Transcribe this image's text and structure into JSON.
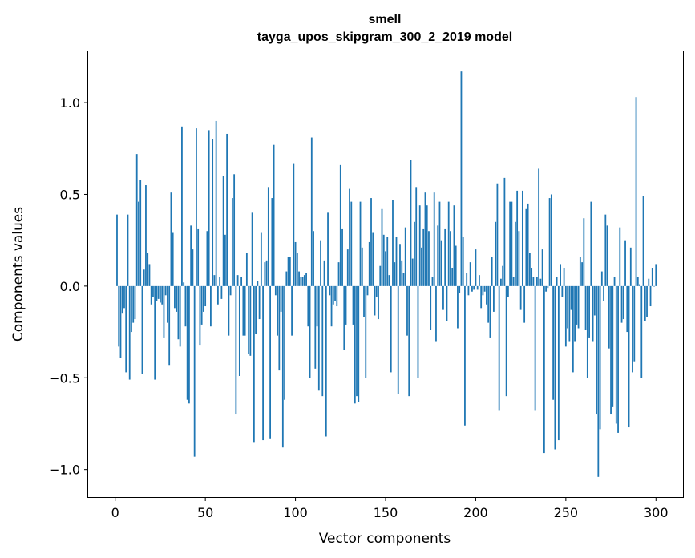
{
  "chart_data": {
    "type": "bar",
    "title_line1": "smell",
    "title_line2": "tayga_upos_skipgram_300_2_2019 model",
    "xlabel": "Vector components",
    "ylabel": "Components values",
    "xlim": [
      -15,
      315
    ],
    "ylim": [
      -1.15,
      1.28
    ],
    "xticks": [
      0,
      50,
      100,
      150,
      200,
      250,
      300
    ],
    "xtick_labels": [
      "0",
      "50",
      "100",
      "150",
      "200",
      "250",
      "300"
    ],
    "yticks": [
      -1.0,
      -0.5,
      0.0,
      0.5,
      1.0
    ],
    "ytick_labels": [
      "−1.0",
      "−0.5",
      "0.0",
      "0.5",
      "1.0"
    ],
    "bar_color": "#1f77b4",
    "x": [
      1,
      2,
      3,
      4,
      5,
      6,
      7,
      8,
      9,
      10,
      11,
      12,
      13,
      14,
      15,
      16,
      17,
      18,
      19,
      20,
      21,
      22,
      23,
      24,
      25,
      26,
      27,
      28,
      29,
      30,
      31,
      32,
      33,
      34,
      35,
      36,
      37,
      38,
      39,
      40,
      41,
      42,
      43,
      44,
      45,
      46,
      47,
      48,
      49,
      50,
      51,
      52,
      53,
      54,
      55,
      56,
      57,
      58,
      59,
      60,
      61,
      62,
      63,
      64,
      65,
      66,
      67,
      68,
      69,
      70,
      71,
      72,
      73,
      74,
      75,
      76,
      77,
      78,
      79,
      80,
      81,
      82,
      83,
      84,
      85,
      86,
      87,
      88,
      89,
      90,
      91,
      92,
      93,
      94,
      95,
      96,
      97,
      98,
      99,
      100,
      101,
      102,
      103,
      104,
      105,
      106,
      107,
      108,
      109,
      110,
      111,
      112,
      113,
      114,
      115,
      116,
      117,
      118,
      119,
      120,
      121,
      122,
      123,
      124,
      125,
      126,
      127,
      128,
      129,
      130,
      131,
      132,
      133,
      134,
      135,
      136,
      137,
      138,
      139,
      140,
      141,
      142,
      143,
      144,
      145,
      146,
      147,
      148,
      149,
      150,
      151,
      152,
      153,
      154,
      155,
      156,
      157,
      158,
      159,
      160,
      161,
      162,
      163,
      164,
      165,
      166,
      167,
      168,
      169,
      170,
      171,
      172,
      173,
      174,
      175,
      176,
      177,
      178,
      179,
      180,
      181,
      182,
      183,
      184,
      185,
      186,
      187,
      188,
      189,
      190,
      191,
      192,
      193,
      194,
      195,
      196,
      197,
      198,
      199,
      200,
      201,
      202,
      203,
      204,
      205,
      206,
      207,
      208,
      209,
      210,
      211,
      212,
      213,
      214,
      215,
      216,
      217,
      218,
      219,
      220,
      221,
      222,
      223,
      224,
      225,
      226,
      227,
      228,
      229,
      230,
      231,
      232,
      233,
      234,
      235,
      236,
      237,
      238,
      239,
      240,
      241,
      242,
      243,
      244,
      245,
      246,
      247,
      248,
      249,
      250,
      251,
      252,
      253,
      254,
      255,
      256,
      257,
      258,
      259,
      260,
      261,
      262,
      263,
      264,
      265,
      266,
      267,
      268,
      269,
      270,
      271,
      272,
      273,
      274,
      275,
      276,
      277,
      278,
      279,
      280,
      281,
      282,
      283,
      284,
      285,
      286,
      287,
      288,
      289,
      290,
      291,
      292,
      293,
      294,
      295,
      296,
      297,
      298,
      299,
      300
    ],
    "values": [
      0.39,
      -0.33,
      -0.39,
      -0.15,
      -0.12,
      -0.47,
      0.39,
      -0.51,
      -0.25,
      -0.2,
      -0.18,
      0.72,
      0.46,
      0.58,
      -0.48,
      0.09,
      0.55,
      0.18,
      0.12,
      -0.1,
      -0.06,
      -0.51,
      -0.08,
      -0.07,
      -0.09,
      -0.1,
      -0.28,
      -0.05,
      -0.2,
      -0.43,
      0.51,
      0.29,
      -0.12,
      -0.14,
      -0.29,
      -0.33,
      0.87,
      0.02,
      -0.22,
      -0.62,
      -0.64,
      0.33,
      0.2,
      -0.93,
      0.86,
      0.31,
      -0.32,
      -0.21,
      -0.14,
      -0.11,
      0.3,
      0.85,
      -0.22,
      0.8,
      0.06,
      0.9,
      -0.1,
      0.05,
      -0.07,
      0.6,
      0.28,
      0.83,
      -0.27,
      -0.05,
      0.48,
      0.61,
      -0.7,
      0.06,
      -0.49,
      0.05,
      -0.27,
      -0.27,
      0.18,
      -0.37,
      -0.38,
      0.4,
      -0.85,
      -0.26,
      0.03,
      -0.18,
      0.29,
      -0.84,
      0.13,
      0.14,
      0.54,
      -0.83,
      0.48,
      0.77,
      -0.05,
      -0.27,
      -0.46,
      -0.14,
      -0.88,
      -0.62,
      0.08,
      0.16,
      0.16,
      -0.27,
      0.67,
      0.24,
      0.18,
      0.08,
      0.05,
      0.05,
      0.06,
      0.07,
      -0.22,
      -0.5,
      0.81,
      0.3,
      -0.45,
      -0.22,
      -0.57,
      0.25,
      -0.6,
      0.14,
      -0.82,
      0.4,
      -0.05,
      -0.22,
      -0.1,
      -0.08,
      -0.11,
      0.13,
      0.66,
      0.31,
      -0.35,
      -0.21,
      0.2,
      0.53,
      0.46,
      -0.21,
      -0.64,
      -0.6,
      -0.63,
      0.46,
      0.21,
      -0.17,
      -0.5,
      -0.05,
      0.24,
      0.48,
      0.29,
      -0.16,
      -0.06,
      -0.18,
      0.11,
      0.42,
      0.28,
      0.19,
      0.27,
      0.06,
      -0.47,
      0.47,
      0.13,
      0.27,
      -0.59,
      0.23,
      0.14,
      0.07,
      0.32,
      -0.27,
      -0.6,
      0.69,
      0.15,
      0.35,
      0.54,
      -0.5,
      0.44,
      0.21,
      0.31,
      0.51,
      0.44,
      0.3,
      -0.24,
      0.05,
      0.51,
      -0.3,
      0.33,
      0.46,
      0.25,
      -0.13,
      0.31,
      -0.19,
      0.46,
      0.3,
      0.1,
      0.44,
      0.22,
      -0.23,
      -0.04,
      1.17,
      0.27,
      -0.76,
      0.07,
      -0.05,
      0.13,
      -0.03,
      -0.02,
      0.2,
      -0.02,
      0.06,
      -0.12,
      -0.05,
      -0.03,
      -0.1,
      -0.2,
      -0.28,
      0.16,
      -0.14,
      0.35,
      0.56,
      -0.68,
      0.04,
      0.11,
      0.59,
      -0.6,
      -0.06,
      0.46,
      0.46,
      0.05,
      0.35,
      0.52,
      0.3,
      -0.13,
      0.52,
      -0.2,
      0.42,
      0.45,
      0.18,
      0.1,
      0.05,
      -0.68,
      0.05,
      0.64,
      0.04,
      0.2,
      -0.91,
      -0.03,
      -0.01,
      0.48,
      0.5,
      -0.62,
      -0.89,
      0.05,
      -0.84,
      0.12,
      -0.06,
      0.1,
      -0.33,
      -0.23,
      -0.3,
      -0.13,
      -0.47,
      -0.3,
      -0.21,
      -0.23,
      0.16,
      0.13,
      0.37,
      -0.24,
      -0.5,
      -0.28,
      0.46,
      -0.3,
      -0.16,
      -0.7,
      -1.04,
      -0.78,
      0.08,
      -0.08,
      0.39,
      0.33,
      -0.34,
      -0.7,
      -0.66,
      0.05,
      -0.75,
      -0.8,
      0.32,
      -0.2,
      -0.18,
      0.25,
      -0.25,
      -0.77,
      0.21,
      -0.47,
      -0.41,
      1.03,
      0.05,
      0.01,
      -0.5,
      0.49,
      -0.19,
      -0.17,
      0.04,
      -0.11,
      0.1,
      0.0,
      0.12
    ]
  }
}
